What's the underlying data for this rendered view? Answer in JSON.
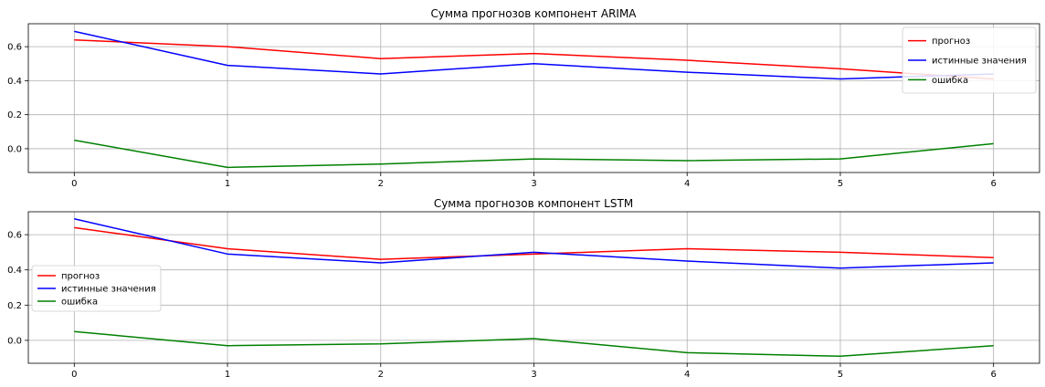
{
  "chart_data": [
    {
      "type": "line",
      "title": "Сумма прогнозов компонент ARIMA",
      "xlabel": "",
      "ylabel": "",
      "x": [
        0,
        1,
        2,
        3,
        4,
        5,
        6
      ],
      "xlim": [
        -0.3,
        6.3
      ],
      "ylim": [
        -0.14,
        0.735
      ],
      "xticks": [
        "0",
        "1",
        "2",
        "3",
        "4",
        "5",
        "6"
      ],
      "yticks": [
        0.0,
        0.2,
        0.4,
        0.6
      ],
      "ytick_labels": [
        "0.0",
        "0.2",
        "0.4",
        "0.6"
      ],
      "grid": true,
      "legend_position": "top-right",
      "series": [
        {
          "name": "прогноз",
          "color": "#ff0000",
          "values": [
            0.64,
            0.6,
            0.53,
            0.56,
            0.52,
            0.47,
            0.41
          ]
        },
        {
          "name": "истинные значения",
          "color": "#0000ff",
          "values": [
            0.69,
            0.49,
            0.44,
            0.5,
            0.45,
            0.41,
            0.44
          ]
        },
        {
          "name": "ошибка",
          "color": "#008000",
          "values": [
            0.05,
            -0.11,
            -0.09,
            -0.06,
            -0.07,
            -0.06,
            0.03
          ]
        }
      ]
    },
    {
      "type": "line",
      "title": "Сумма прогнозов компонент LSTM",
      "xlabel": "",
      "ylabel": "",
      "x": [
        0,
        1,
        2,
        3,
        4,
        5,
        6
      ],
      "xlim": [
        -0.3,
        6.3
      ],
      "ylim": [
        -0.13,
        0.73
      ],
      "xticks": [
        "0",
        "1",
        "2",
        "3",
        "4",
        "5",
        "6"
      ],
      "yticks": [
        0.0,
        0.2,
        0.4,
        0.6
      ],
      "ytick_labels": [
        "0.0",
        "0.2",
        "0.4",
        "0.6"
      ],
      "grid": true,
      "legend_position": "center-left",
      "series": [
        {
          "name": "прогноз",
          "color": "#ff0000",
          "values": [
            0.64,
            0.52,
            0.46,
            0.49,
            0.52,
            0.5,
            0.47
          ]
        },
        {
          "name": "истинные значения",
          "color": "#0000ff",
          "values": [
            0.69,
            0.49,
            0.44,
            0.5,
            0.45,
            0.41,
            0.44
          ]
        },
        {
          "name": "ошибка",
          "color": "#008000",
          "values": [
            0.05,
            -0.03,
            -0.02,
            0.01,
            -0.07,
            -0.09,
            -0.03
          ]
        }
      ]
    }
  ]
}
